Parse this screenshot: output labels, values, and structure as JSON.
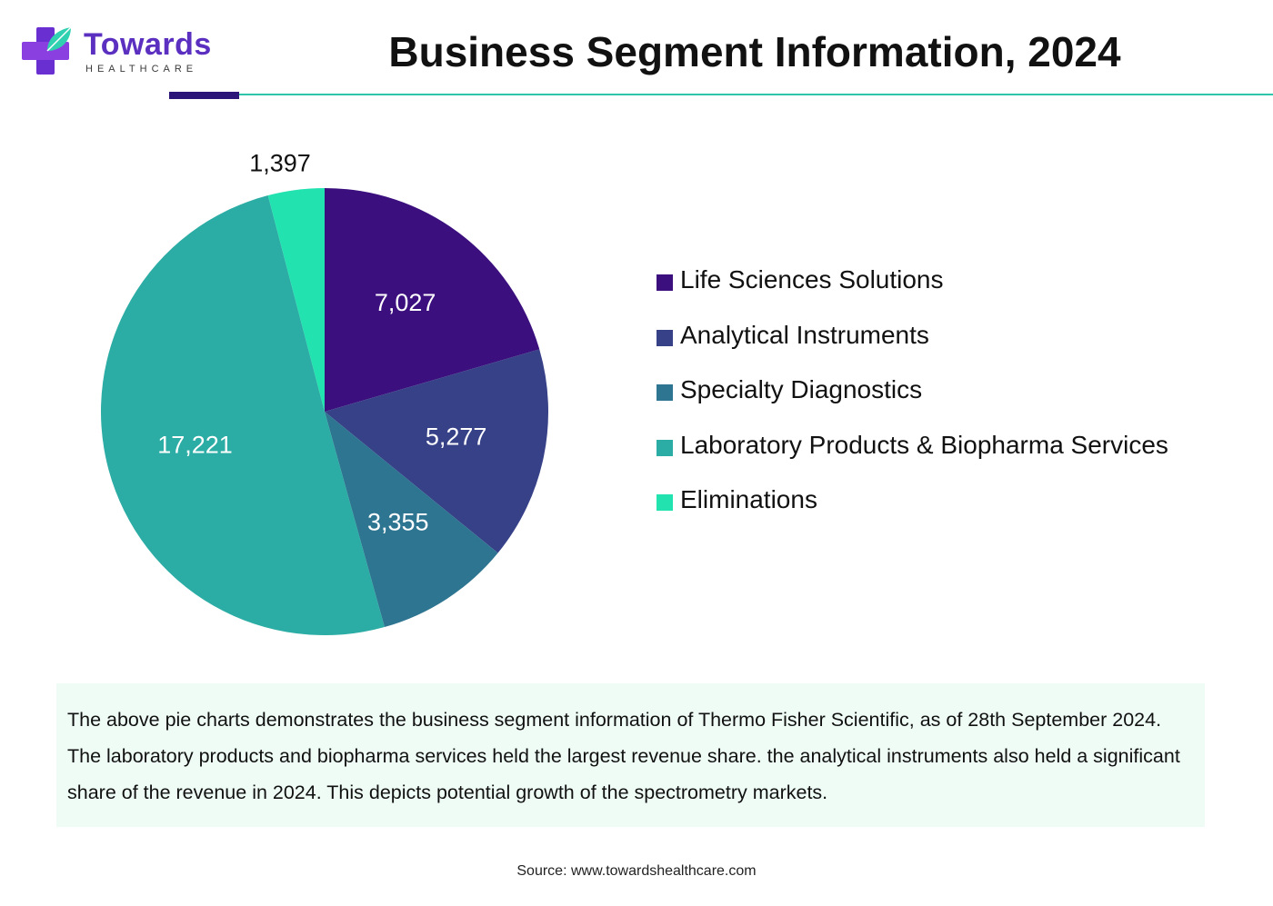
{
  "header": {
    "logo_brand": "Towards",
    "logo_sub": "HEALTHCARE",
    "title": "Business Segment Information, 2024"
  },
  "chart_data": {
    "type": "pie",
    "title": "Business Segment Information, 2024",
    "legend_position": "right",
    "slices": [
      {
        "label": "Life Sciences Solutions",
        "value": 7027,
        "display": "7,027",
        "color": "#3b0f7e"
      },
      {
        "label": "Analytical Instruments",
        "value": 5277,
        "display": "5,277",
        "color": "#374187"
      },
      {
        "label": "Specialty Diagnostics",
        "value": 3355,
        "display": "3,355",
        "color": "#2e7591"
      },
      {
        "label": "Laboratory Products & Biopharma Services",
        "value": 17221,
        "display": "17,221",
        "color": "#2baca4"
      },
      {
        "label": "Eliminations",
        "value": 1397,
        "display": "1,397",
        "color": "#22e2b0"
      }
    ]
  },
  "description": "The above pie charts demonstrates the business segment information of Thermo Fisher Scientific, as of 28th September 2024. The laboratory products and biopharma services held the largest revenue share. the analytical instruments also held a significant share of the revenue in 2024. This depicts potential growth of the spectrometry markets.",
  "source": "Source: www.towardshealthcare.com",
  "colors": {
    "accent_bar": "#2b1578",
    "rule": "#2fc5a8",
    "brand": "#5b2fc0",
    "desc_bg": "#effcf6"
  }
}
